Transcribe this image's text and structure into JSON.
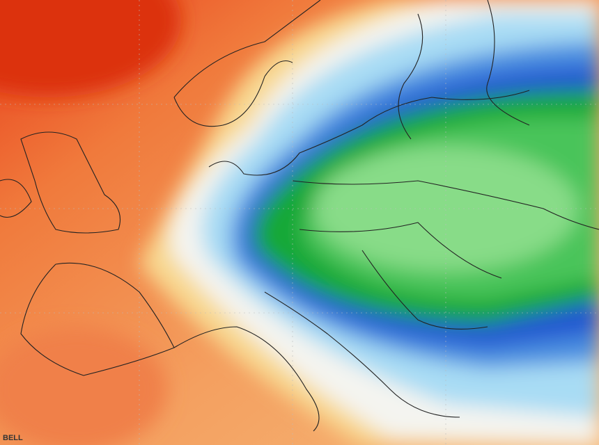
{
  "watermark": "BELL"
}
